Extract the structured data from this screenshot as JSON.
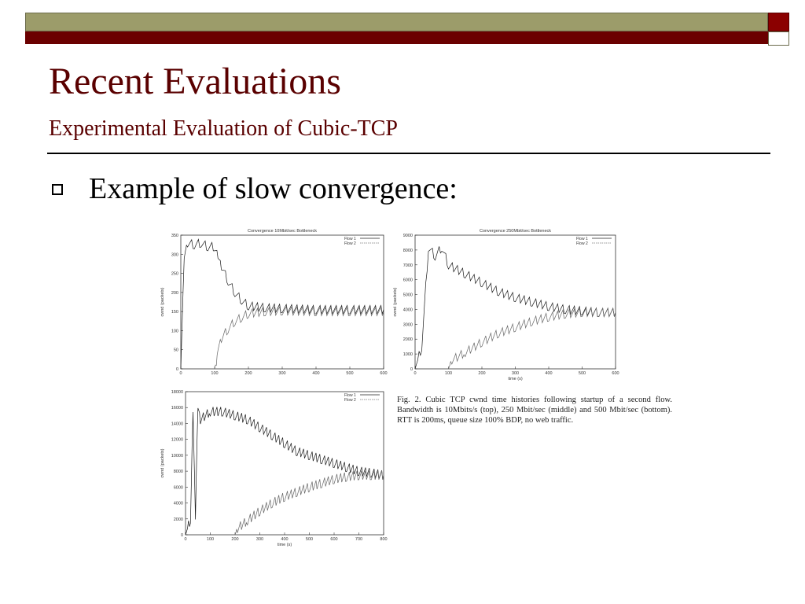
{
  "slide": {
    "title": "Recent Evaluations",
    "subtitle": "Experimental Evaluation of Cubic-TCP",
    "bullet": "Example of slow convergence:",
    "caption": "Fig. 2.    Cubic TCP cwnd time histories following startup of a second flow. Bandwidth is 10Mbits/s (top), 250 Mbit/sec (middle) and 500 Mbit/sec (bottom). RTT is 200ms, queue size 100% BDP, no web traffic."
  },
  "colors": {
    "olive": "#9c9c6a",
    "maroon": "#6b0000",
    "title": "#5a0000"
  },
  "chart_data": [
    {
      "type": "line",
      "title": "Convergence 10Mbit/sec Bottleneck",
      "xlabel": "",
      "ylabel": "cwnd (packets)",
      "xlim": [
        0,
        600
      ],
      "ylim": [
        0,
        350
      ],
      "xticks": [
        0,
        100,
        200,
        300,
        400,
        500,
        600
      ],
      "yticks": [
        0,
        50,
        100,
        150,
        200,
        250,
        300,
        350
      ],
      "series": [
        {
          "name": "Flow 1",
          "x": [
            0,
            10,
            20,
            40,
            60,
            80,
            100,
            110,
            120,
            140,
            160,
            180,
            200,
            250,
            300,
            400,
            500,
            600
          ],
          "y": [
            0,
            300,
            330,
            325,
            330,
            320,
            320,
            300,
            270,
            230,
            200,
            180,
            165,
            160,
            158,
            155,
            155,
            155
          ]
        },
        {
          "name": "Flow 2",
          "x": [
            100,
            105,
            110,
            120,
            140,
            160,
            180,
            200,
            250,
            300,
            400,
            500,
            600
          ],
          "y": [
            0,
            20,
            60,
            80,
            105,
            125,
            135,
            145,
            150,
            152,
            150,
            150,
            150
          ]
        }
      ]
    },
    {
      "type": "line",
      "title": "Convergence 250Mbit/sec Bottleneck",
      "xlabel": "time (s)",
      "ylabel": "cwnd (packets)",
      "xlim": [
        0,
        600
      ],
      "ylim": [
        0,
        9000
      ],
      "xticks": [
        0,
        100,
        200,
        300,
        400,
        500,
        600
      ],
      "yticks": [
        0,
        1000,
        2000,
        3000,
        4000,
        5000,
        6000,
        7000,
        8000,
        9000
      ],
      "series": [
        {
          "name": "Flow 1",
          "x": [
            0,
            20,
            40,
            60,
            80,
            100,
            150,
            200,
            250,
            300,
            350,
            400,
            450,
            500,
            550,
            600
          ],
          "y": [
            0,
            1500,
            8200,
            7600,
            8200,
            7000,
            6400,
            5800,
            5200,
            4800,
            4500,
            4200,
            4000,
            3900,
            3800,
            3800
          ]
        },
        {
          "name": "Flow 2",
          "x": [
            100,
            110,
            150,
            200,
            250,
            300,
            350,
            400,
            450,
            500,
            550,
            600
          ],
          "y": [
            0,
            600,
            1100,
            1800,
            2400,
            2800,
            3200,
            3500,
            3700,
            3800,
            3800,
            3800
          ]
        }
      ]
    },
    {
      "type": "line",
      "title": "",
      "xlabel": "time (s)",
      "ylabel": "cwnd (packets)",
      "xlim": [
        0,
        800
      ],
      "ylim": [
        0,
        18000
      ],
      "xticks": [
        0,
        100,
        200,
        300,
        400,
        500,
        600,
        700,
        800
      ],
      "yticks": [
        0,
        2000,
        4000,
        6000,
        8000,
        10000,
        12000,
        14000,
        16000,
        18000
      ],
      "series": [
        {
          "name": "Flow 1",
          "x": [
            0,
            20,
            30,
            40,
            50,
            60,
            100,
            150,
            200,
            250,
            300,
            350,
            400,
            450,
            500,
            550,
            600,
            650,
            700,
            750,
            800
          ],
          "y": [
            0,
            2000,
            16000,
            2500,
            16500,
            14500,
            15500,
            15500,
            15000,
            14500,
            13500,
            12500,
            11500,
            10500,
            10000,
            9500,
            9000,
            8500,
            8000,
            7800,
            7500
          ]
        },
        {
          "name": "Flow 2",
          "x": [
            200,
            210,
            250,
            300,
            350,
            400,
            450,
            500,
            550,
            600,
            650,
            700,
            750,
            800
          ],
          "y": [
            0,
            800,
            1800,
            3000,
            4000,
            4800,
            5400,
            6000,
            6500,
            7000,
            7300,
            7500,
            7500,
            7500
          ]
        }
      ]
    }
  ]
}
